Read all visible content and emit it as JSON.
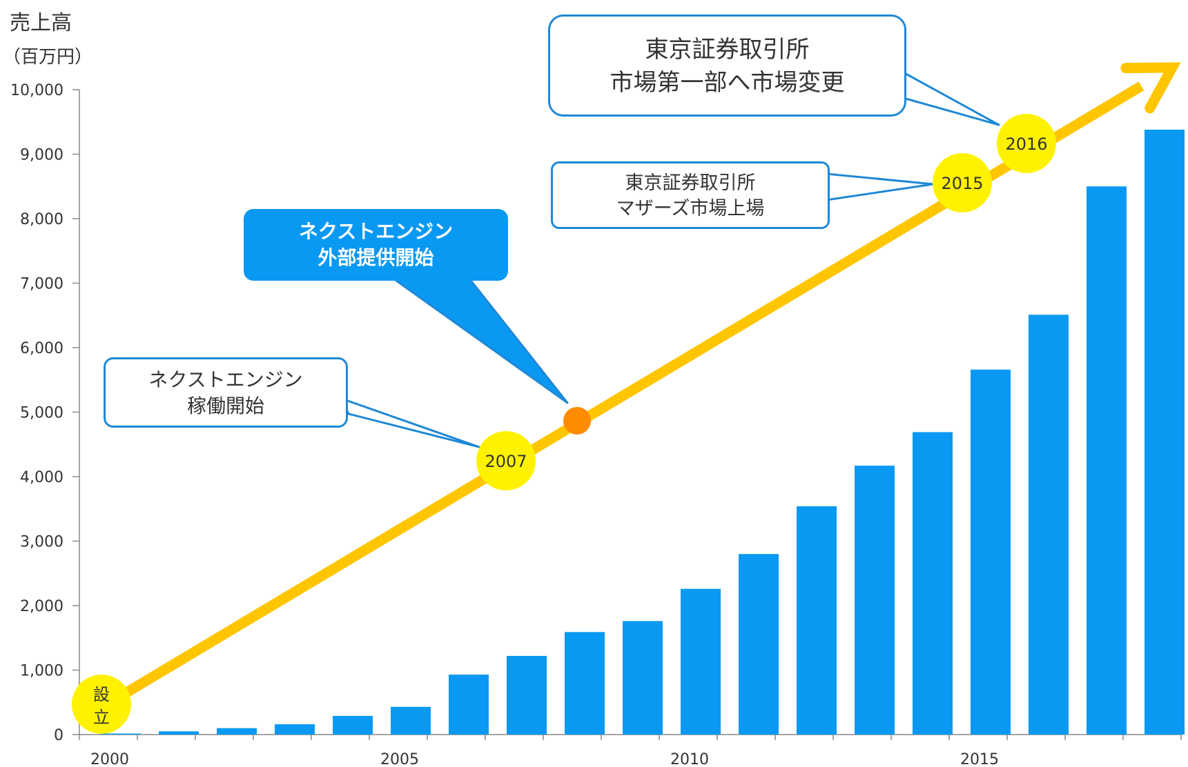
{
  "chart_data": {
    "type": "bar",
    "ylabel": "売上高",
    "yunit": "（百万円）",
    "ylim": [
      0,
      10000
    ],
    "yticks": [
      "0",
      "1,000",
      "2,000",
      "3,000",
      "4,000",
      "5,000",
      "6,000",
      "7,000",
      "8,000",
      "9,000",
      "10,000"
    ],
    "xtick_labels": [
      "2000",
      "2005",
      "2010",
      "2015"
    ],
    "categories": [
      "2000",
      "2001",
      "2002",
      "2003",
      "2004",
      "2005",
      "2006",
      "2007",
      "2008",
      "2009",
      "2010",
      "2011",
      "2012",
      "2013",
      "2014",
      "2015",
      "2016",
      "2017",
      "2018"
    ],
    "values": [
      15,
      50,
      100,
      160,
      290,
      430,
      930,
      1220,
      1590,
      1760,
      2260,
      2800,
      3540,
      4170,
      4690,
      5660,
      6510,
      8500,
      9380
    ],
    "bar_color": "#0a99f2",
    "trend_arrow_color": "#ffc600",
    "milestone_color": "#fff200",
    "milestones": [
      {
        "label": "設立",
        "year": 2000
      },
      {
        "label": "2007",
        "year": 2007
      },
      {
        "label": "",
        "year": 2008,
        "color": "#ff8c00"
      },
      {
        "label": "2015",
        "year": 2015
      },
      {
        "label": "2016",
        "year": 2016
      }
    ],
    "annotations": {
      "engine_start": [
        "ネクストエンジン",
        "稼働開始"
      ],
      "engine_external": [
        "ネクストエンジン",
        "外部提供開始"
      ],
      "mothers": [
        "東京証券取引所",
        "マザーズ市場上場"
      ],
      "first_section": [
        "東京証券取引所",
        "市場第一部へ市場変更"
      ]
    }
  }
}
